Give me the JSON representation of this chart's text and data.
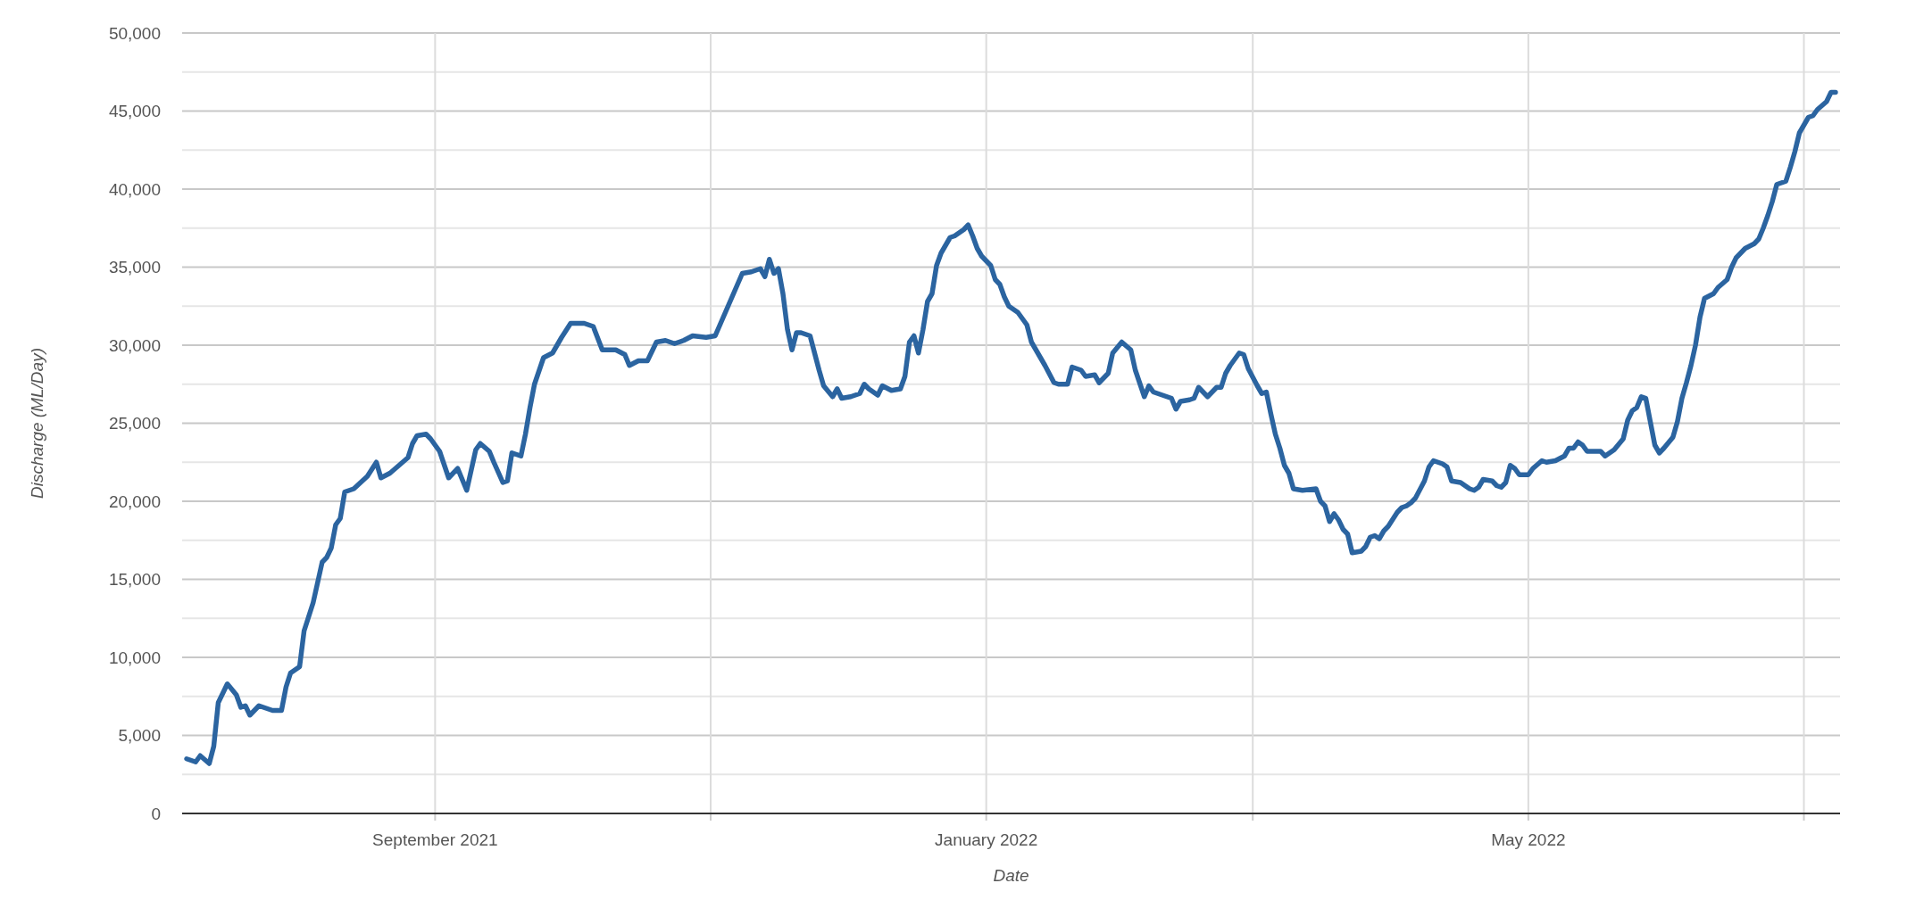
{
  "chart_data": {
    "type": "line",
    "xlabel": "Date",
    "ylabel": "Discharge (ML/Day)",
    "xlim": [
      "2021-07-07",
      "2022-07-09"
    ],
    "ylim": [
      0,
      50000
    ],
    "xticks": [
      {
        "value": "2021-09-01",
        "label": "September 2021"
      },
      {
        "value": "2021-11-01",
        "label": null
      },
      {
        "value": "2022-01-01",
        "label": "January 2022"
      },
      {
        "value": "2022-03-01",
        "label": null
      },
      {
        "value": "2022-05-01",
        "label": "May 2022"
      },
      {
        "value": "2022-07-01",
        "label": null
      }
    ],
    "yticks": [
      {
        "value": 0,
        "label": "0"
      },
      {
        "value": 2500,
        "label": null
      },
      {
        "value": 5000,
        "label": "5,000"
      },
      {
        "value": 7500,
        "label": null
      },
      {
        "value": 10000,
        "label": "10,000"
      },
      {
        "value": 12500,
        "label": null
      },
      {
        "value": 15000,
        "label": "15,000"
      },
      {
        "value": 17500,
        "label": null
      },
      {
        "value": 20000,
        "label": "20,000"
      },
      {
        "value": 22500,
        "label": null
      },
      {
        "value": 25000,
        "label": "25,000"
      },
      {
        "value": 27500,
        "label": null
      },
      {
        "value": 30000,
        "label": "30,000"
      },
      {
        "value": 32500,
        "label": null
      },
      {
        "value": 35000,
        "label": "35,000"
      },
      {
        "value": 37500,
        "label": null
      },
      {
        "value": 40000,
        "label": "40,000"
      },
      {
        "value": 42500,
        "label": null
      },
      {
        "value": 45000,
        "label": "45,000"
      },
      {
        "value": 47500,
        "label": null
      },
      {
        "value": 50000,
        "label": "50,000"
      }
    ],
    "grid": true,
    "marker": "none",
    "line_style": "solid",
    "series": [
      {
        "color": "#2b64a0",
        "x": [
          "2021-07-08",
          "2021-07-10",
          "2021-07-11",
          "2021-07-13",
          "2021-07-14",
          "2021-07-15",
          "2021-07-17",
          "2021-07-19",
          "2021-07-20",
          "2021-07-21",
          "2021-07-22",
          "2021-07-24",
          "2021-07-27",
          "2021-07-29",
          "2021-07-30",
          "2021-07-31",
          "2021-08-02",
          "2021-08-03",
          "2021-08-05",
          "2021-08-07",
          "2021-08-08",
          "2021-08-09",
          "2021-08-10",
          "2021-08-11",
          "2021-08-12",
          "2021-08-14",
          "2021-08-17",
          "2021-08-19",
          "2021-08-20",
          "2021-08-22",
          "2021-08-24",
          "2021-08-26",
          "2021-08-27",
          "2021-08-28",
          "2021-08-30",
          "2021-08-31",
          "2021-09-02",
          "2021-09-04",
          "2021-09-06",
          "2021-09-08",
          "2021-09-10",
          "2021-09-11",
          "2021-09-13",
          "2021-09-14",
          "2021-09-16",
          "2021-09-17",
          "2021-09-18",
          "2021-09-20",
          "2021-09-21",
          "2021-09-22",
          "2021-09-23",
          "2021-09-25",
          "2021-09-27",
          "2021-09-29",
          "2021-10-01",
          "2021-10-04",
          "2021-10-06",
          "2021-10-08",
          "2021-10-11",
          "2021-10-13",
          "2021-10-14",
          "2021-10-16",
          "2021-10-18",
          "2021-10-20",
          "2021-10-22",
          "2021-10-24",
          "2021-10-26",
          "2021-10-28",
          "2021-10-31",
          "2021-11-02",
          "2021-11-05",
          "2021-11-08",
          "2021-11-10",
          "2021-11-12",
          "2021-11-13",
          "2021-11-14",
          "2021-11-15",
          "2021-11-16",
          "2021-11-17",
          "2021-11-18",
          "2021-11-19",
          "2021-11-20",
          "2021-11-21",
          "2021-11-23",
          "2021-11-25",
          "2021-11-26",
          "2021-11-28",
          "2021-11-29",
          "2021-11-30",
          "2021-12-02",
          "2021-12-04",
          "2021-12-05",
          "2021-12-06",
          "2021-12-08",
          "2021-12-09",
          "2021-12-11",
          "2021-12-13",
          "2021-12-14",
          "2021-12-15",
          "2021-12-16",
          "2021-12-17",
          "2021-12-18",
          "2021-12-19",
          "2021-12-20",
          "2021-12-21",
          "2021-12-22",
          "2021-12-24",
          "2021-12-25",
          "2021-12-27",
          "2021-12-28",
          "2021-12-29",
          "2021-12-30",
          "2021-12-31",
          "2022-01-02",
          "2022-01-03",
          "2022-01-04",
          "2022-01-05",
          "2022-01-06",
          "2022-01-08",
          "2022-01-09",
          "2022-01-10",
          "2022-01-11",
          "2022-01-13",
          "2022-01-14",
          "2022-01-16",
          "2022-01-17",
          "2022-01-19",
          "2022-01-20",
          "2022-01-22",
          "2022-01-23",
          "2022-01-25",
          "2022-01-26",
          "2022-01-28",
          "2022-01-29",
          "2022-01-31",
          "2022-02-02",
          "2022-02-03",
          "2022-02-05",
          "2022-02-06",
          "2022-02-07",
          "2022-02-09",
          "2022-02-11",
          "2022-02-12",
          "2022-02-13",
          "2022-02-15",
          "2022-02-16",
          "2022-02-17",
          "2022-02-19",
          "2022-02-21",
          "2022-02-22",
          "2022-02-23",
          "2022-02-24",
          "2022-02-26",
          "2022-02-27",
          "2022-02-28",
          "2022-03-02",
          "2022-03-03",
          "2022-03-04",
          "2022-03-05",
          "2022-03-06",
          "2022-03-07",
          "2022-03-08",
          "2022-03-09",
          "2022-03-10",
          "2022-03-12",
          "2022-03-15",
          "2022-03-16",
          "2022-03-17",
          "2022-03-18",
          "2022-03-19",
          "2022-03-20",
          "2022-03-21",
          "2022-03-22",
          "2022-03-23",
          "2022-03-25",
          "2022-03-26",
          "2022-03-27",
          "2022-03-28",
          "2022-03-29",
          "2022-03-30",
          "2022-03-31",
          "2022-04-02",
          "2022-04-03",
          "2022-04-04",
          "2022-04-05",
          "2022-04-06",
          "2022-04-08",
          "2022-04-09",
          "2022-04-10",
          "2022-04-12",
          "2022-04-13",
          "2022-04-14",
          "2022-04-16",
          "2022-04-17",
          "2022-04-18",
          "2022-04-19",
          "2022-04-20",
          "2022-04-21",
          "2022-04-23",
          "2022-04-24",
          "2022-04-25",
          "2022-04-26",
          "2022-04-27",
          "2022-04-28",
          "2022-04-29",
          "2022-05-01",
          "2022-05-02",
          "2022-05-04",
          "2022-05-05",
          "2022-05-07",
          "2022-05-09",
          "2022-05-10",
          "2022-05-11",
          "2022-05-12",
          "2022-05-13",
          "2022-05-14",
          "2022-05-17",
          "2022-05-18",
          "2022-05-20",
          "2022-05-22",
          "2022-05-23",
          "2022-05-24",
          "2022-05-25",
          "2022-05-26",
          "2022-05-27",
          "2022-05-28",
          "2022-05-29",
          "2022-05-30",
          "2022-05-31",
          "2022-06-02",
          "2022-06-03",
          "2022-06-04",
          "2022-06-05",
          "2022-06-06",
          "2022-06-07",
          "2022-06-08",
          "2022-06-09",
          "2022-06-11",
          "2022-06-12",
          "2022-06-14",
          "2022-06-15",
          "2022-06-16",
          "2022-06-18",
          "2022-06-20",
          "2022-06-21",
          "2022-06-22",
          "2022-06-23",
          "2022-06-24",
          "2022-06-25",
          "2022-06-27",
          "2022-06-28",
          "2022-06-29",
          "2022-06-30",
          "2022-07-02",
          "2022-07-03",
          "2022-07-04",
          "2022-07-06",
          "2022-07-07",
          "2022-07-08"
        ],
        "values": [
          3500,
          3300,
          3700,
          3200,
          4300,
          7100,
          8300,
          7600,
          6800,
          6900,
          6300,
          6900,
          6600,
          6600,
          8100,
          9000,
          9400,
          11700,
          13500,
          16100,
          16400,
          17000,
          18500,
          18900,
          20600,
          20800,
          21600,
          22500,
          21500,
          21800,
          22300,
          22800,
          23700,
          24200,
          24300,
          24000,
          23200,
          21500,
          22100,
          20700,
          23300,
          23700,
          23200,
          22500,
          21200,
          21300,
          23100,
          22900,
          24300,
          26000,
          27500,
          29200,
          29500,
          30500,
          31400,
          31400,
          31200,
          29700,
          29700,
          29400,
          28700,
          29000,
          29000,
          30200,
          30300,
          30100,
          30300,
          30600,
          30500,
          30600,
          32600,
          34600,
          34700,
          34900,
          34400,
          35500,
          34600,
          34900,
          33300,
          31000,
          29700,
          30800,
          30800,
          30600,
          28400,
          27400,
          26700,
          27200,
          26600,
          26700,
          26900,
          27500,
          27200,
          26800,
          27400,
          27100,
          27200,
          28000,
          30200,
          30600,
          29500,
          31000,
          32800,
          33300,
          35100,
          35900,
          36900,
          37000,
          37400,
          37700,
          37000,
          36200,
          35700,
          35100,
          34200,
          33900,
          33100,
          32500,
          32100,
          31700,
          31300,
          30200,
          29200,
          28700,
          27600,
          27500,
          27500,
          28600,
          28400,
          28000,
          28100,
          27600,
          28200,
          29500,
          30200,
          29700,
          28400,
          26700,
          27400,
          27000,
          26800,
          26600,
          25900,
          26400,
          26500,
          26600,
          27300,
          26700,
          27300,
          27300,
          28200,
          28700,
          29500,
          29400,
          28500,
          27400,
          26900,
          27000,
          25600,
          24300,
          23400,
          22300,
          21800,
          20800,
          20700,
          20800,
          20000,
          19700,
          18700,
          19200,
          18800,
          18200,
          17900,
          16700,
          16800,
          17100,
          17700,
          17800,
          17600,
          18100,
          18400,
          19300,
          19600,
          19700,
          19900,
          20200,
          21300,
          22200,
          22600,
          22400,
          22200,
          21300,
          21200,
          21000,
          20800,
          20700,
          20900,
          21400,
          21300,
          21000,
          20900,
          21200,
          22300,
          22100,
          21700,
          21700,
          22100,
          22600,
          22500,
          22600,
          22900,
          23400,
          23400,
          23800,
          23600,
          23200,
          23200,
          22900,
          23300,
          24000,
          25200,
          25800,
          26000,
          26700,
          26600,
          25100,
          23600,
          23100,
          23400,
          24100,
          25100,
          26600,
          27600,
          28700,
          30000,
          31800,
          33000,
          33300,
          33700,
          34200,
          35000,
          35600,
          36200,
          36500,
          36800,
          37500,
          38300,
          39200,
          40300,
          40500,
          41400,
          42400,
          43600,
          44600,
          44700,
          45100,
          45600,
          46200,
          46200
        ]
      }
    ]
  }
}
